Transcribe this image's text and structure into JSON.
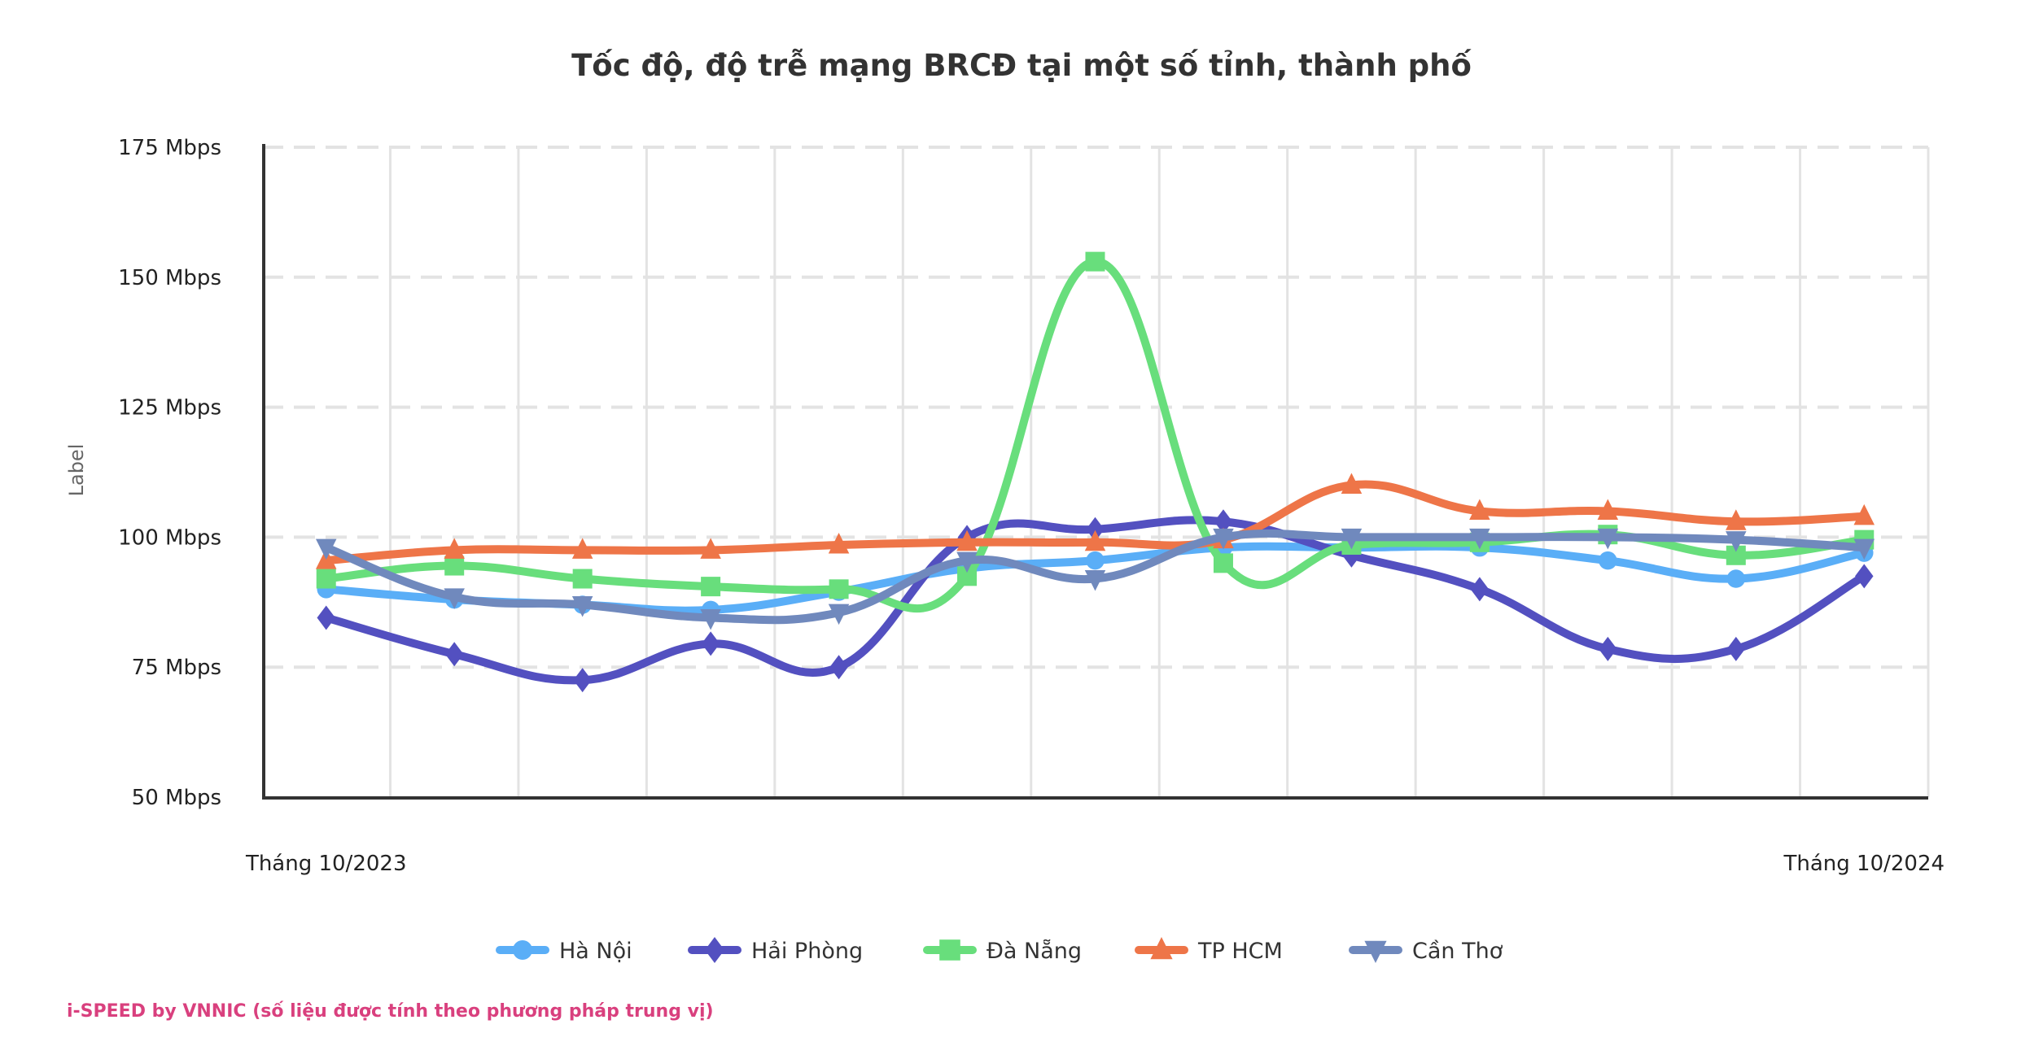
{
  "chart_data": {
    "type": "line",
    "title": "Tốc độ, độ trễ mạng BRCĐ tại một số tỉnh, thành phố",
    "ylabel": "Label",
    "xlabel": "",
    "x_tick_labels": [
      "Tháng 10/2023",
      "Tháng 10/2024"
    ],
    "x_count": 13,
    "y_unit": "Mbps",
    "ylim": [
      50,
      175
    ],
    "y_ticks": [
      50,
      75,
      100,
      125,
      150,
      175
    ],
    "y_tick_labels": [
      "50 Mbps",
      "75 Mbps",
      "100 Mbps",
      "125 Mbps",
      "150 Mbps",
      "175 Mbps"
    ],
    "grid": true,
    "legend_position": "bottom",
    "series": [
      {
        "name": "Hà Nội",
        "color": "#5aaef7",
        "marker": "circle",
        "values": [
          90,
          88,
          87,
          86,
          89.5,
          94,
          95.5,
          98,
          98,
          98,
          95.5,
          92,
          97
        ]
      },
      {
        "name": "Hải Phòng",
        "color": "#5350c0",
        "marker": "diamond",
        "values": [
          84.5,
          77.5,
          72.5,
          79.5,
          75,
          100,
          101.5,
          103,
          96.5,
          90,
          78.5,
          78.5,
          92.5
        ]
      },
      {
        "name": "Đà Nẵng",
        "color": "#68de7c",
        "marker": "square",
        "values": [
          92,
          94.5,
          92,
          90.5,
          90,
          92.5,
          153,
          95,
          98.5,
          99,
          100.5,
          96.5,
          99.5
        ]
      },
      {
        "name": "TP HCM",
        "color": "#ee7548",
        "marker": "triangle-up",
        "values": [
          95.5,
          97.5,
          97.5,
          97.5,
          98.5,
          99,
          99,
          99.5,
          110,
          105,
          105,
          103,
          104
        ]
      },
      {
        "name": "Cần Thơ",
        "color": "#7089bd",
        "marker": "triangle-down",
        "values": [
          98,
          88.5,
          87,
          84.5,
          85.5,
          95.5,
          92,
          100,
          100,
          100,
          100,
          99.5,
          98
        ]
      }
    ]
  },
  "footer": "i-SPEED by VNNIC (số liệu được tính theo phương pháp trung vị)"
}
